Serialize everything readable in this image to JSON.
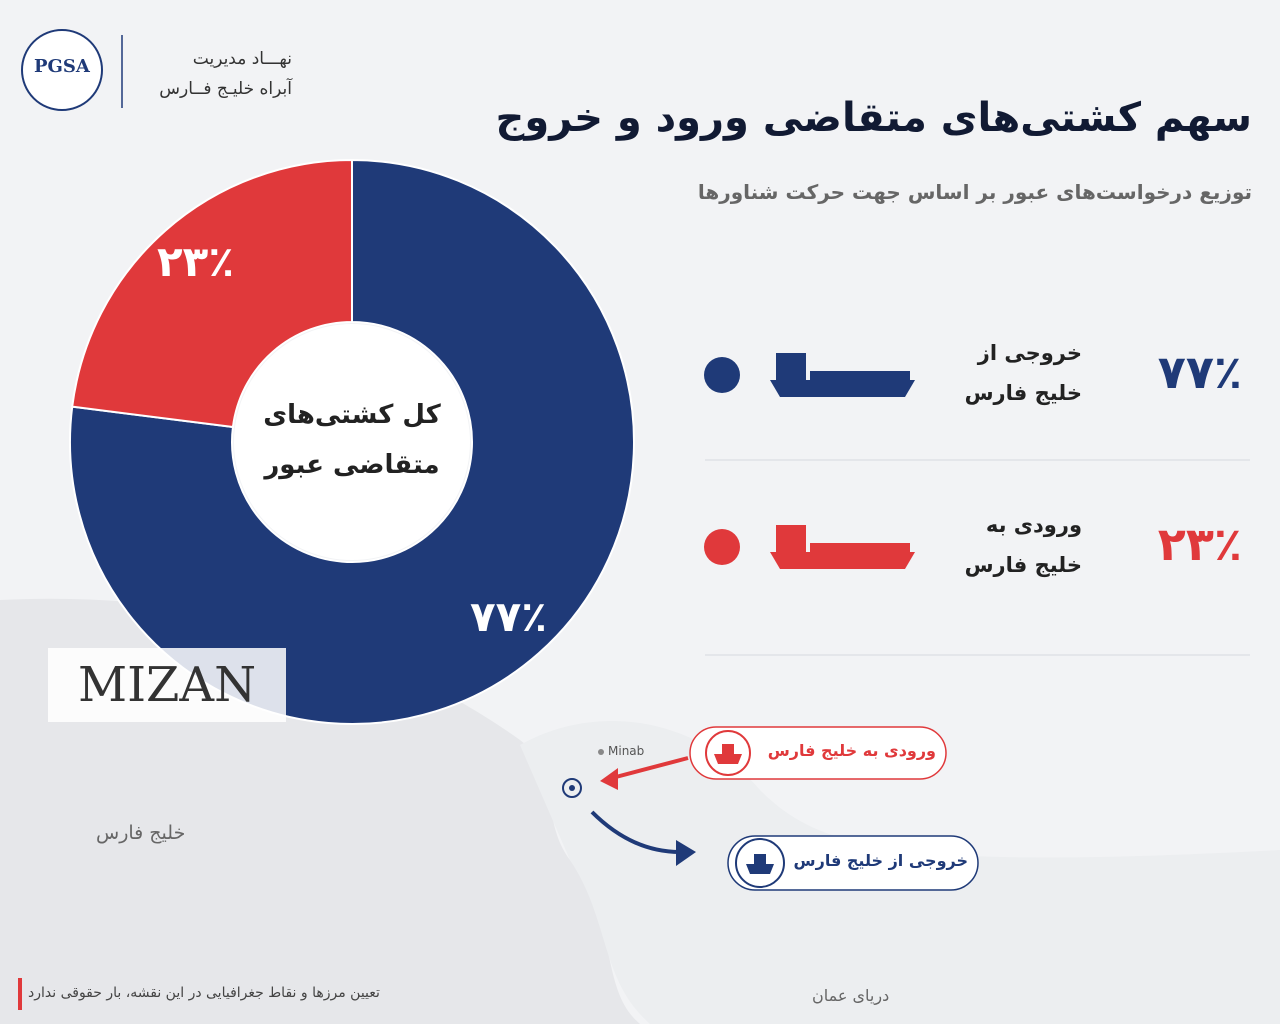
{
  "header": {
    "logo": "PGSA",
    "org_lines": [
      "نهـــاد مدیریت",
      "آبراه خلیـج فــارس"
    ]
  },
  "chart_data": {
    "type": "pie",
    "title": "سهم کشتی‌های متقاضی ورود و خروج",
    "subtitle": "توزیع درخواست‌های عبور بر اساس جهت حرکت شناورها",
    "center_label": "کل کشتی‌های متقاضی عبور",
    "categories": [
      "خروجی از خلیج فارس",
      "ورودی به خلیج فارس"
    ],
    "values": [
      77,
      23
    ],
    "value_labels": [
      "۷۷٪",
      "۲۳٪"
    ],
    "colors": [
      "#1f3a78",
      "#e0393b"
    ]
  },
  "watermark": "MIZAN",
  "map": {
    "gulf": "خلیج فارس",
    "sea": "دریای عمان",
    "city": "Minab",
    "inbound": "ورودی به خلیج فارس",
    "outbound": "خروجی از خلیج فارس"
  },
  "footer": {
    "disclaimer": "تعیین مرزها و نقاط جغرافیایی در این نقشه، بار حقوقی ندارد"
  }
}
